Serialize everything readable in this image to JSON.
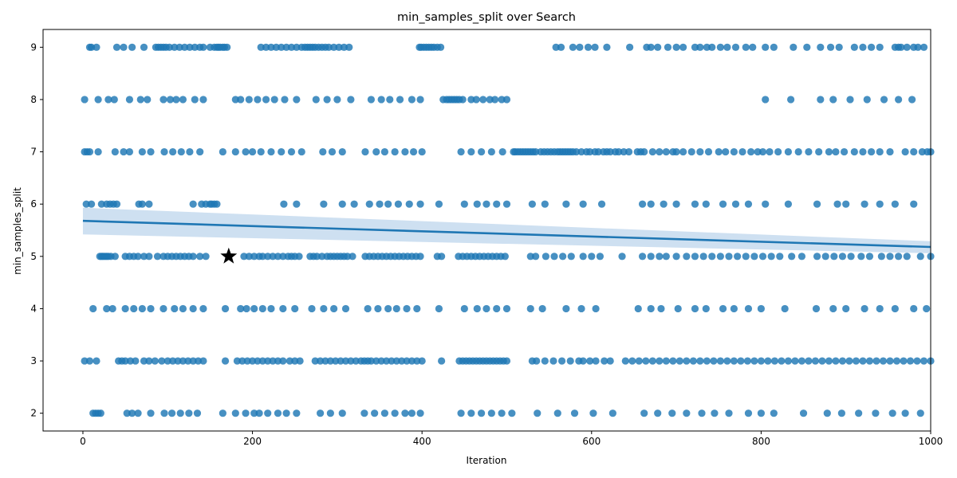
{
  "chart_data": {
    "type": "scatter",
    "title": "min_samples_split over Search",
    "xlabel": "Iteration",
    "ylabel": "min_samples_split",
    "xlim": [
      -47,
      1000
    ],
    "ylim": [
      1.66,
      9.34
    ],
    "xticks": [
      "0",
      "200",
      "400",
      "600",
      "800",
      "1000"
    ],
    "yticks": [
      "2",
      "3",
      "4",
      "5",
      "6",
      "7",
      "8",
      "9"
    ],
    "grid": false,
    "colors": {
      "points": "#1f77b4",
      "regression": "#1f77b4",
      "ci_band": "#c6dbef",
      "best_marker": "#000000"
    },
    "regression": {
      "x": [
        0,
        1000
      ],
      "y": [
        5.68,
        5.18
      ],
      "ci_lower": [
        5.42,
        5.06
      ],
      "ci_upper": [
        5.93,
        5.29
      ]
    },
    "best": {
      "x": 172,
      "y": 5,
      "marker": "star"
    },
    "series": [
      {
        "y": 9,
        "x": [
          8,
          10,
          16,
          40,
          48,
          58,
          72,
          86,
          89,
          92,
          95,
          98,
          102,
          108,
          114,
          120,
          126,
          132,
          138,
          142,
          150,
          155,
          158,
          160,
          162,
          165,
          167,
          170,
          210,
          216,
          222,
          228,
          234,
          240,
          246,
          252,
          258,
          262,
          265,
          268,
          271,
          274,
          278,
          282,
          286,
          290,
          296,
          302,
          308,
          314,
          397,
          399,
          402,
          405,
          408,
          411,
          414,
          418,
          422,
          558,
          564,
          578,
          586,
          596,
          604,
          618,
          645,
          665,
          670,
          678,
          690,
          700,
          708,
          722,
          728,
          736,
          742,
          752,
          760,
          770,
          782,
          790,
          805,
          815,
          838,
          854,
          870,
          882,
          892,
          910,
          920,
          930,
          940,
          958,
          962,
          965,
          972,
          980,
          985,
          992
        ]
      },
      {
        "y": 8,
        "x": [
          2,
          18,
          30,
          37,
          55,
          68,
          76,
          95,
          103,
          110,
          118,
          132,
          142,
          180,
          186,
          196,
          206,
          216,
          226,
          238,
          252,
          275,
          288,
          300,
          316,
          340,
          352,
          362,
          374,
          388,
          398,
          425,
          429,
          432,
          435,
          438,
          441,
          444,
          448,
          458,
          464,
          472,
          480,
          486,
          494,
          500,
          805,
          835,
          870,
          885,
          905,
          925,
          945,
          962,
          978
        ]
      },
      {
        "y": 7,
        "x": [
          2,
          5,
          8,
          18,
          38,
          48,
          55,
          70,
          80,
          96,
          106,
          116,
          126,
          138,
          165,
          180,
          192,
          200,
          210,
          222,
          234,
          246,
          258,
          283,
          294,
          306,
          333,
          346,
          356,
          368,
          380,
          390,
          400,
          446,
          458,
          470,
          482,
          495,
          508,
          510,
          513,
          516,
          519,
          522,
          525,
          528,
          531,
          534,
          540,
          544,
          548,
          552,
          556,
          560,
          563,
          566,
          569,
          572,
          575,
          578,
          582,
          588,
          594,
          598,
          604,
          608,
          614,
          618,
          622,
          628,
          632,
          638,
          644,
          654,
          658,
          662,
          672,
          680,
          688,
          696,
          700,
          708,
          718,
          728,
          738,
          750,
          758,
          768,
          778,
          788,
          796,
          802,
          810,
          820,
          832,
          844,
          856,
          868,
          880,
          888,
          898,
          910,
          920,
          930,
          940,
          952,
          970,
          980,
          990,
          996,
          1000
        ]
      },
      {
        "y": 6,
        "x": [
          4,
          10,
          22,
          28,
          32,
          36,
          40,
          66,
          70,
          78,
          130,
          140,
          145,
          150,
          152,
          155,
          158,
          237,
          252,
          284,
          306,
          320,
          338,
          350,
          360,
          372,
          385,
          398,
          420,
          450,
          465,
          476,
          488,
          500,
          530,
          545,
          570,
          590,
          612,
          660,
          670,
          685,
          700,
          722,
          735,
          755,
          770,
          785,
          805,
          832,
          866,
          890,
          900,
          922,
          940,
          958,
          980
        ]
      },
      {
        "y": 5,
        "x": [
          20,
          22,
          24,
          26,
          28,
          30,
          33,
          38,
          50,
          55,
          60,
          65,
          72,
          78,
          88,
          95,
          100,
          105,
          110,
          115,
          120,
          125,
          130,
          138,
          145,
          190,
          196,
          202,
          208,
          212,
          218,
          224,
          230,
          236,
          242,
          246,
          250,
          255,
          268,
          272,
          276,
          282,
          288,
          292,
          296,
          300,
          304,
          308,
          312,
          318,
          333,
          338,
          343,
          348,
          353,
          358,
          363,
          368,
          373,
          378,
          383,
          388,
          393,
          398,
          418,
          423,
          443,
          448,
          453,
          458,
          463,
          468,
          473,
          478,
          483,
          488,
          493,
          498,
          528,
          534,
          546,
          556,
          566,
          576,
          590,
          600,
          610,
          636,
          660,
          670,
          680,
          688,
          700,
          712,
          722,
          732,
          742,
          752,
          762,
          772,
          782,
          792,
          802,
          812,
          822,
          836,
          848,
          866,
          876,
          886,
          896,
          906,
          918,
          928,
          942,
          952,
          962,
          972,
          988,
          1000
        ]
      },
      {
        "y": 4,
        "x": [
          12,
          28,
          35,
          50,
          60,
          70,
          80,
          95,
          108,
          118,
          130,
          142,
          168,
          186,
          193,
          202,
          212,
          222,
          236,
          250,
          270,
          284,
          296,
          310,
          336,
          348,
          360,
          370,
          382,
          394,
          420,
          450,
          465,
          476,
          488,
          500,
          528,
          542,
          570,
          588,
          605,
          655,
          670,
          682,
          702,
          722,
          735,
          755,
          768,
          785,
          800,
          828,
          865,
          885,
          900,
          922,
          940,
          958,
          980,
          995
        ]
      },
      {
        "y": 3,
        "x": [
          2,
          8,
          16,
          42,
          46,
          50,
          56,
          62,
          72,
          78,
          85,
          93,
          100,
          106,
          112,
          118,
          124,
          130,
          136,
          142,
          168,
          182,
          188,
          194,
          200,
          206,
          212,
          218,
          224,
          230,
          236,
          244,
          250,
          256,
          274,
          280,
          286,
          292,
          298,
          304,
          310,
          316,
          322,
          328,
          332,
          336,
          340,
          346,
          352,
          358,
          364,
          370,
          376,
          382,
          388,
          394,
          400,
          423,
          444,
          448,
          452,
          456,
          460,
          464,
          468,
          472,
          476,
          480,
          484,
          488,
          492,
          496,
          500,
          530,
          535,
          545,
          555,
          565,
          575,
          585,
          590,
          598,
          605,
          615,
          622,
          640,
          648,
          656,
          664,
          672,
          680,
          688,
          696,
          704,
          712,
          720,
          728,
          736,
          744,
          752,
          760,
          768,
          776,
          784,
          792,
          800,
          808,
          816,
          824,
          832,
          840,
          848,
          856,
          864,
          872,
          880,
          888,
          896,
          904,
          912,
          920,
          928,
          936,
          944,
          952,
          960,
          968,
          976,
          984,
          992,
          1000
        ]
      },
      {
        "y": 2,
        "x": [
          12,
          15,
          18,
          21,
          52,
          58,
          65,
          80,
          96,
          105,
          115,
          125,
          135,
          165,
          180,
          192,
          202,
          208,
          218,
          230,
          240,
          252,
          280,
          292,
          306,
          332,
          344,
          356,
          368,
          380,
          388,
          398,
          446,
          458,
          470,
          482,
          494,
          506,
          536,
          560,
          580,
          602,
          625,
          662,
          678,
          695,
          712,
          730,
          745,
          762,
          785,
          800,
          815,
          850,
          878,
          895,
          915,
          935,
          955,
          970,
          988
        ]
      }
    ]
  }
}
